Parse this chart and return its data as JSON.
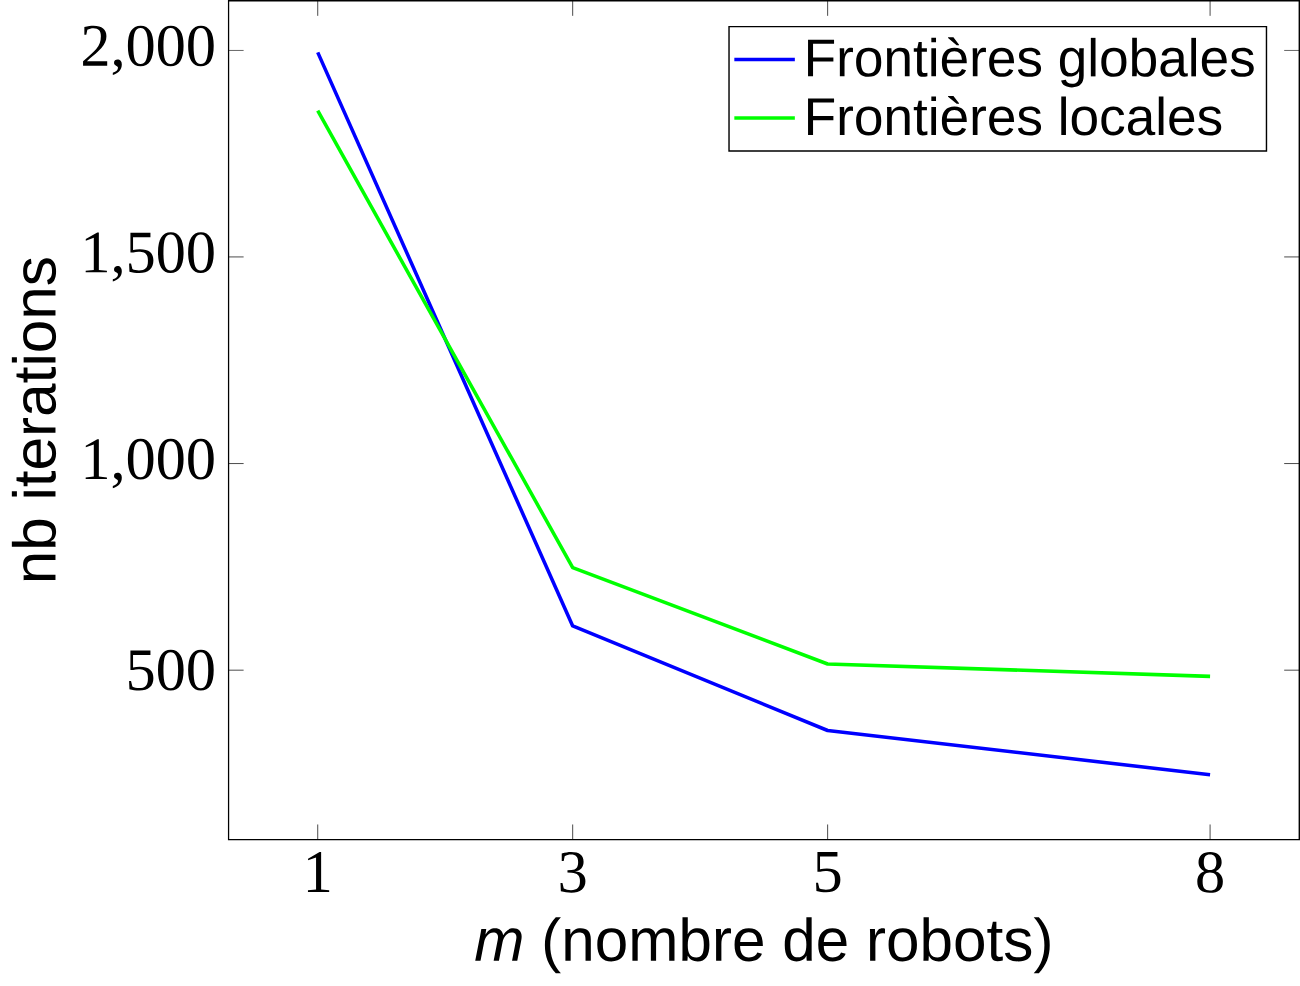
{
  "chart_data": {
    "type": "line",
    "xlabel": "*m* (nombre de robots)",
    "ylabel": "nb iterations",
    "x": [
      1,
      3,
      5,
      8
    ],
    "series": [
      {
        "name": "Frontières globales",
        "color": "#0000ff",
        "values": [
          1995,
          607,
          354,
          247
        ]
      },
      {
        "name": "Frontières locales",
        "color": "#00ff00",
        "values": [
          1854,
          748,
          515,
          485
        ]
      }
    ],
    "xlim": [
      0.3,
      8.7
    ],
    "ylim": [
      90,
      2120
    ],
    "xticks": [
      1,
      3,
      5,
      8
    ],
    "yticks": [
      {
        "value": 500,
        "label": "500"
      },
      {
        "value": 1000,
        "label": "1,000"
      },
      {
        "value": 1500,
        "label": "1,500"
      },
      {
        "value": 2000,
        "label": "2,000"
      }
    ],
    "legend": "top right",
    "marker": "none",
    "line_style": "solid"
  }
}
